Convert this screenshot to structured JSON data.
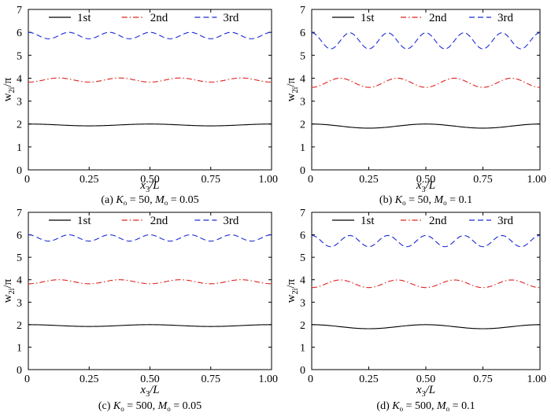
{
  "chart_data": [
    {
      "type": "line",
      "caption": "(a) K_o = 50, M_o = 0.05",
      "caption_parts": {
        "panel": "(a)",
        "k_sym": "K",
        "k_sub": "o",
        "k_val": "= 50,",
        "m_sym": "M",
        "m_sub": "o",
        "m_val": "= 0.05"
      },
      "xlabel": {
        "sym": "x",
        "sub": "3",
        "rest": "/L"
      },
      "ylabel": {
        "sym": "w",
        "sub": "2i",
        "rest": "/π"
      },
      "xlim": [
        0,
        1
      ],
      "ylim": [
        0,
        7
      ],
      "xticks": [
        "0",
        "0.25",
        "0.50",
        "0.75",
        "1.00"
      ],
      "yticks": [
        "0",
        "1",
        "2",
        "3",
        "4",
        "5",
        "6",
        "7"
      ],
      "legend": [
        "1st",
        "2nd",
        "3rd"
      ],
      "series": [
        {
          "name": "1st",
          "style": "solid",
          "color": "#000000",
          "mean": 1.96,
          "amp": 0.04,
          "cycles": 2,
          "phase": 0
        },
        {
          "name": "2nd",
          "style": "dashdot",
          "color": "#e0211c",
          "mean": 3.92,
          "amp": 0.09,
          "cycles": 4,
          "phase": 3.14159
        },
        {
          "name": "3rd",
          "style": "dashed",
          "color": "#1c2bd6",
          "mean": 5.86,
          "amp": 0.14,
          "cycles": 6,
          "phase": 0
        }
      ]
    },
    {
      "type": "line",
      "caption": "(b) K_o = 50, M_o = 0.1",
      "caption_parts": {
        "panel": "(b)",
        "k_sym": "K",
        "k_sub": "o",
        "k_val": "= 50,",
        "m_sym": "M",
        "m_sub": "o",
        "m_val": "= 0.1"
      },
      "xlabel": {
        "sym": "x",
        "sub": "3",
        "rest": "/L"
      },
      "ylabel": {
        "sym": "w",
        "sub": "2i",
        "rest": "/π"
      },
      "xlim": [
        0,
        1
      ],
      "ylim": [
        0,
        7
      ],
      "xticks": [
        "0",
        "0.25",
        "0.50",
        "0.75",
        "1.00"
      ],
      "yticks": [
        "0",
        "1",
        "2",
        "3",
        "4",
        "5",
        "6",
        "7"
      ],
      "legend": [
        "1st",
        "2nd",
        "3rd"
      ],
      "series": [
        {
          "name": "1st",
          "style": "solid",
          "color": "#000000",
          "mean": 1.91,
          "amp": 0.09,
          "cycles": 2,
          "phase": 0
        },
        {
          "name": "2nd",
          "style": "dashdot",
          "color": "#e0211c",
          "mean": 3.8,
          "amp": 0.2,
          "cycles": 4,
          "phase": 3.14159
        },
        {
          "name": "3rd",
          "style": "dashed",
          "color": "#1c2bd6",
          "mean": 5.63,
          "amp": 0.35,
          "cycles": 6,
          "phase": 0
        }
      ]
    },
    {
      "type": "line",
      "caption": "(c) K_o = 500, M_o = 0.05",
      "caption_parts": {
        "panel": "(c)",
        "k_sym": "K",
        "k_sub": "o",
        "k_val": "= 500,",
        "m_sym": "M",
        "m_sub": "o",
        "m_val": "= 0.05"
      },
      "xlabel": {
        "sym": "x",
        "sub": "3",
        "rest": "/L"
      },
      "ylabel": {
        "sym": "w",
        "sub": "2i",
        "rest": "/π"
      },
      "xlim": [
        0,
        1
      ],
      "ylim": [
        0,
        7
      ],
      "xticks": [
        "0",
        "0.25",
        "0.50",
        "0.75",
        "1.00"
      ],
      "yticks": [
        "0",
        "1",
        "2",
        "3",
        "4",
        "5",
        "6",
        "7"
      ],
      "legend": [
        "1st",
        "2nd",
        "3rd"
      ],
      "series": [
        {
          "name": "1st",
          "style": "solid",
          "color": "#000000",
          "mean": 1.96,
          "amp": 0.04,
          "cycles": 2,
          "phase": 0
        },
        {
          "name": "2nd",
          "style": "dashdot",
          "color": "#e0211c",
          "mean": 3.91,
          "amp": 0.09,
          "cycles": 4,
          "phase": 3.14159
        },
        {
          "name": "3rd",
          "style": "dashed",
          "color": "#1c2bd6",
          "mean": 5.86,
          "amp": 0.14,
          "cycles": 6,
          "phase": 0
        }
      ]
    },
    {
      "type": "line",
      "caption": "(d) K_o = 500, M_o = 0.1",
      "caption_parts": {
        "panel": "(d)",
        "k_sym": "K",
        "k_sub": "o",
        "k_val": "= 500,",
        "m_sym": "M",
        "m_sub": "o",
        "m_val": "= 0.1"
      },
      "xlabel": {
        "sym": "x",
        "sub": "3",
        "rest": "/L"
      },
      "ylabel": {
        "sym": "w",
        "sub": "2i",
        "rest": "/π"
      },
      "xlim": [
        0,
        1
      ],
      "ylim": [
        0,
        7
      ],
      "xticks": [
        "0",
        "0.25",
        "0.50",
        "0.75",
        "1.00"
      ],
      "yticks": [
        "0",
        "1",
        "2",
        "3",
        "4",
        "5",
        "6",
        "7"
      ],
      "legend": [
        "1st",
        "2nd",
        "3rd"
      ],
      "series": [
        {
          "name": "1st",
          "style": "solid",
          "color": "#000000",
          "mean": 1.91,
          "amp": 0.09,
          "cycles": 2,
          "phase": 0
        },
        {
          "name": "2nd",
          "style": "dashdot",
          "color": "#e0211c",
          "mean": 3.82,
          "amp": 0.17,
          "cycles": 4,
          "phase": 3.14159
        },
        {
          "name": "3rd",
          "style": "dashed",
          "color": "#1c2bd6",
          "mean": 5.72,
          "amp": 0.25,
          "cycles": 6,
          "phase": 0
        }
      ]
    }
  ]
}
